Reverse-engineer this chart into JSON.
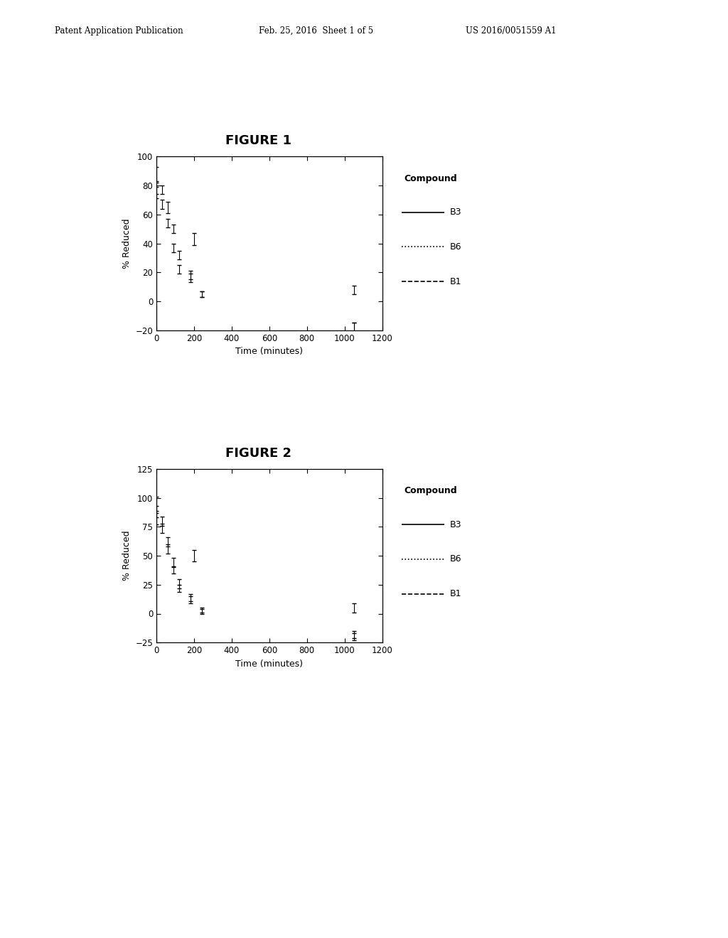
{
  "fig1": {
    "title": "FIGURE 1",
    "xlabel": "Time (minutes)",
    "ylabel": "% Reduced",
    "xlim": [
      0,
      1200
    ],
    "ylim": [
      -20,
      100
    ],
    "yticks": [
      -20,
      0,
      20,
      40,
      60,
      80,
      100
    ],
    "xticks": [
      0,
      200,
      400,
      600,
      800,
      1000,
      1200
    ],
    "B3": {
      "x": [
        0,
        30,
        60,
        90,
        120,
        180,
        240,
        1050
      ],
      "y": [
        88,
        77,
        65,
        50,
        32,
        18,
        5,
        -18
      ],
      "yerr": [
        5,
        3,
        4,
        3,
        3,
        3,
        2,
        3
      ],
      "linestyle": "solid",
      "label": "B3"
    },
    "B6": {
      "x": [
        0,
        200,
        1050
      ],
      "y": [
        75,
        43,
        8
      ],
      "yerr": [
        4,
        4,
        3
      ],
      "linestyle": "dotted",
      "label": "B6"
    },
    "B1": {
      "x": [
        0,
        30,
        60,
        90,
        120,
        180,
        240,
        1050
      ],
      "y": [
        78,
        67,
        54,
        37,
        22,
        16,
        5,
        -18
      ],
      "yerr": [
        4,
        3,
        3,
        3,
        3,
        3,
        2,
        3
      ],
      "linestyle": "dashed",
      "label": "B1"
    }
  },
  "fig2": {
    "title": "FIGURE 2",
    "xlabel": "Time (minutes)",
    "ylabel": "% Reduced",
    "xlim": [
      0,
      1200
    ],
    "ylim": [
      -25,
      125
    ],
    "yticks": [
      -25,
      0,
      25,
      50,
      75,
      100,
      125
    ],
    "xticks": [
      0,
      200,
      400,
      600,
      800,
      1000,
      1200
    ],
    "B3": {
      "x": [
        0,
        30,
        60,
        90,
        120,
        180,
        240,
        1050
      ],
      "y": [
        95,
        80,
        62,
        44,
        26,
        14,
        3,
        -20
      ],
      "yerr": [
        6,
        4,
        4,
        4,
        4,
        3,
        2,
        3
      ],
      "linestyle": "solid",
      "label": "B3"
    },
    "B6": {
      "x": [
        0,
        200,
        1050
      ],
      "y": [
        82,
        50,
        5
      ],
      "yerr": [
        5,
        5,
        4
      ],
      "linestyle": "dotted",
      "label": "B6"
    },
    "B1": {
      "x": [
        0,
        30,
        60,
        90,
        120,
        180,
        240,
        1050
      ],
      "y": [
        88,
        74,
        56,
        38,
        22,
        12,
        2,
        -18
      ],
      "yerr": [
        5,
        4,
        4,
        3,
        3,
        3,
        2,
        3
      ],
      "linestyle": "dashed",
      "label": "B1"
    }
  },
  "header_left": "Patent Application Publication",
  "header_mid": "Feb. 25, 2016  Sheet 1 of 5",
  "header_right": "US 2016/0051559 A1",
  "legend_title": "Compound",
  "bg_color": "#ffffff",
  "line_color": "#000000"
}
